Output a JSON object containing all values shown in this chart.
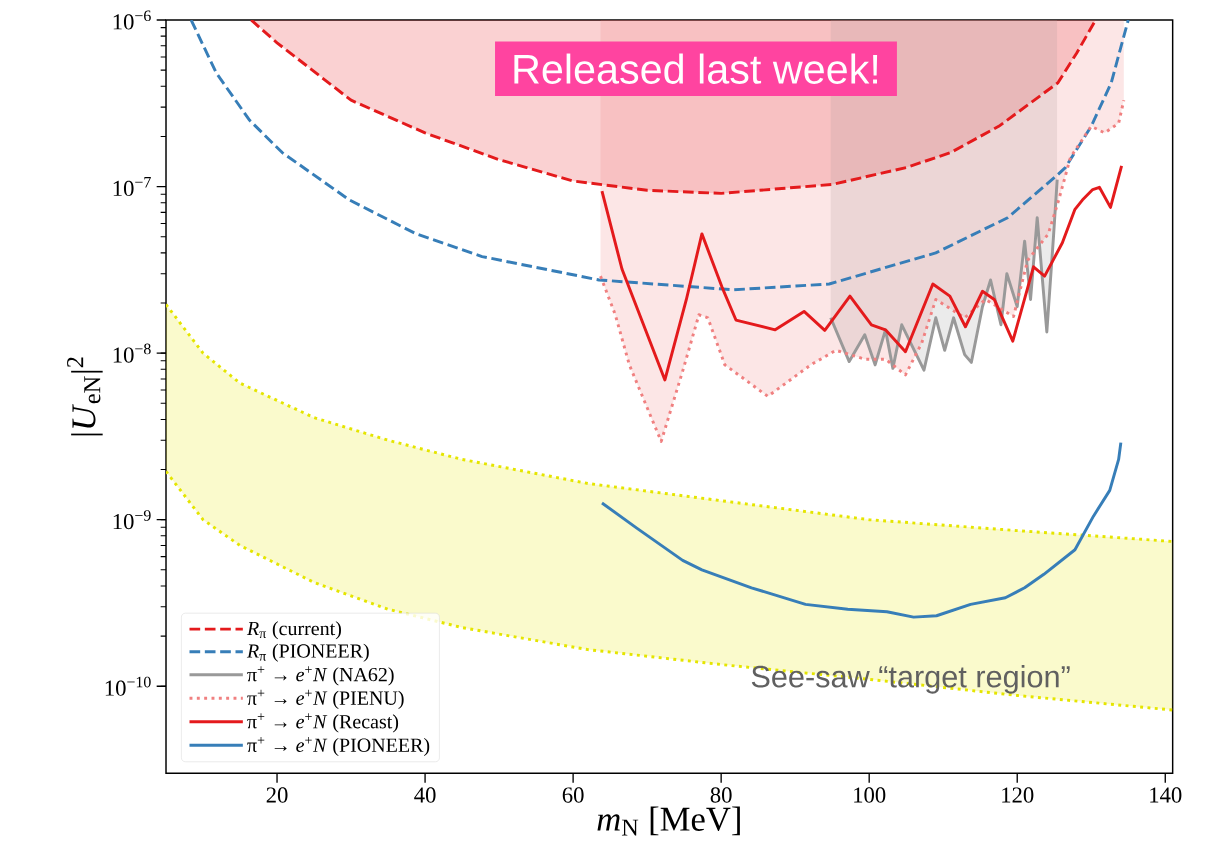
{
  "chart_data": {
    "type": "line",
    "xlabel": "*m*$_{N}$ [MeV]",
    "ylabel": "|*U*$_{eN}$|$^{2}$",
    "xlim": [
      5,
      141
    ],
    "ylim": [
      3e-11,
      1e-06
    ],
    "xticks": [
      20,
      40,
      60,
      80,
      100,
      120,
      140
    ],
    "yticks": [
      {
        "value": 1e-10,
        "label": "10$^{−10}$"
      },
      {
        "value": 1e-09,
        "label": "10$^{−9}$"
      },
      {
        "value": 1e-08,
        "label": "10$^{−8}$"
      },
      {
        "value": 1e-07,
        "label": "10$^{−7}$"
      },
      {
        "value": 1e-06,
        "label": "10$^{−6}$"
      }
    ],
    "log": "y",
    "legend": "bottom left",
    "annotations": [
      "Released last week!",
      "See-saw “target region”"
    ],
    "series": [
      {
        "color": "#e5e500",
        "line_style": "dotted",
        "x": [
          5,
          10,
          15,
          25,
          35,
          45,
          62,
          80,
          100,
          120,
          141
        ],
        "values": [
          1.96e-08,
          1e-08,
          6.6e-09,
          4.1e-09,
          3e-09,
          2.3e-09,
          1.65e-09,
          1.3e-09,
          1e-09,
          8.6e-10,
          7.4e-10
        ],
        "lower": [
          1.95e-09,
          1e-09,
          7e-10,
          4.2e-10,
          2.9e-10,
          2.25e-10,
          1.66e-10,
          1.35e-10,
          1.1e-10,
          8.8e-11,
          7.2e-11
        ],
        "upper": [
          1.96e-08,
          1e-08,
          6.6e-09,
          4.1e-09,
          3e-09,
          2.3e-09,
          1.65e-09,
          1.3e-09,
          1e-09,
          8.6e-10,
          7.4e-10
        ]
      },
      {
        "color": "#e5e500",
        "line_style": "dotted",
        "x": [
          5,
          10,
          15,
          25,
          35,
          45,
          62,
          80,
          100,
          120,
          141
        ],
        "values": [
          1.95e-09,
          1e-09,
          7e-10,
          4.2e-10,
          2.9e-10,
          2.25e-10,
          1.66e-10,
          1.35e-10,
          1.1e-10,
          8.8e-11,
          7.2e-11
        ]
      },
      {
        "name": "*R*$_{π}$ (current)",
        "color": "#e41a1c",
        "line_style": "dashed",
        "x": [
          16.5,
          20,
          30,
          40,
          50,
          60,
          70,
          80,
          95,
          105,
          111,
          117.5,
          125.5,
          128,
          130.6
        ],
        "values": [
          1e-06,
          7.3e-07,
          3.3e-07,
          2.1e-07,
          1.45e-07,
          1.08e-07,
          9.5e-08,
          9.1e-08,
          1.03e-07,
          1.3e-07,
          1.6e-07,
          2.3e-07,
          4.2e-07,
          6.3e-07,
          1e-06
        ],
        "lower": [
          1e-06,
          7.3e-07,
          3.3e-07,
          2.1e-07,
          1.45e-07,
          1.08e-07,
          9.5e-08,
          9.1e-08,
          1.03e-07,
          1.3e-07,
          1.6e-07,
          2.3e-07,
          4.2e-07,
          6.3e-07,
          1e-06
        ],
        "upper": [
          1e-06,
          1e-06,
          1e-06,
          1e-06,
          1e-06,
          1e-06,
          1e-06,
          1e-06,
          1e-06,
          1e-06,
          1e-06,
          1e-06,
          1e-06,
          1e-06,
          1e-06
        ]
      },
      {
        "name": "*R*$_{π}$ (PIONEER)",
        "color": "#377eb8",
        "line_style": "dashed",
        "x": [
          8.4,
          11.8,
          16.3,
          20.7,
          29.8,
          38.8,
          47.7,
          63.5,
          81.6,
          94.6,
          109,
          118.7,
          125.4,
          126.5,
          130,
          132.7,
          135
        ],
        "values": [
          1e-06,
          4.8e-07,
          2.5e-07,
          1.6e-07,
          8.3e-08,
          5.2e-08,
          3.8e-08,
          2.75e-08,
          2.4e-08,
          2.6e-08,
          4e-08,
          6.5e-08,
          1.17e-07,
          1.3e-07,
          2.3e-07,
          4.2e-07,
          1e-06
        ]
      },
      {
        "name": "π$^{+}$ → *e*$^{+}$*N* (NA62)",
        "color": "#999999",
        "line_style": "solid",
        "x": [
          94.8,
          97.3,
          99.4,
          100.8,
          102.2,
          103.2,
          104.4,
          107.4,
          109,
          110.2,
          111.4,
          112.9,
          113.8,
          115.3,
          116.4,
          117.8,
          118.6,
          120,
          121,
          121.8,
          122.7,
          124,
          124.9,
          125.4
        ],
        "values": [
          1.63e-08,
          8.9e-09,
          1.29e-08,
          8.5e-09,
          1.38e-08,
          8.1e-09,
          1.48e-08,
          7.9e-09,
          1.63e-08,
          1.04e-08,
          1.63e-08,
          9.8e-09,
          8.8e-09,
          1.9e-08,
          2.75e-08,
          1.48e-08,
          3e-08,
          1.9e-08,
          4.7e-08,
          2.1e-08,
          6.5e-08,
          1.34e-08,
          5e-08,
          1.1e-07
        ],
        "lower": [
          1.63e-08,
          8.9e-09,
          1.29e-08,
          8.5e-09,
          1.38e-08,
          8.1e-09,
          1.48e-08,
          7.9e-09,
          1.63e-08,
          1.04e-08,
          1.63e-08,
          9.8e-09,
          8.8e-09,
          1.9e-08,
          2.75e-08,
          1.48e-08,
          3e-08,
          1.9e-08,
          4.7e-08,
          2.1e-08,
          6.5e-08,
          1.34e-08,
          5e-08,
          1.1e-07
        ],
        "upper": [
          1e-06,
          1e-06,
          1e-06,
          1e-06,
          1e-06,
          1e-06,
          1e-06,
          1e-06,
          1e-06,
          1e-06,
          1e-06,
          1e-06,
          1e-06,
          1e-06,
          1e-06,
          1e-06,
          1e-06,
          1e-06,
          1e-06,
          1e-06,
          1e-06,
          1e-06,
          1e-06,
          1e-06
        ]
      },
      {
        "name": "π$^{+}$ → *e*$^{+}$*N* (PIENU)",
        "color": "#f08080",
        "line_style": "dotted",
        "x": [
          63.7,
          65.7,
          67.6,
          71.9,
          74.8,
          77,
          78.2,
          80.5,
          83.5,
          86.3,
          92.1,
          95.5,
          99.4,
          102.2,
          104.9,
          107.1,
          109,
          112.9,
          115.7,
          119.5,
          121.4,
          124.2,
          125.6,
          127.2,
          130,
          131.8,
          133.7,
          134.4
        ],
        "values": [
          2.9e-08,
          1.7e-08,
          8.5e-09,
          2.95e-09,
          7.8e-09,
          1.7e-08,
          1.63e-08,
          8.5e-09,
          6.8e-09,
          5.5e-09,
          8.5e-09,
          1.04e-08,
          9.2e-09,
          9.2e-09,
          7.4e-09,
          1.15e-08,
          2.1e-08,
          1.63e-08,
          2.1e-08,
          1.66e-08,
          3.6e-08,
          5.2e-08,
          8.3e-08,
          1.5e-07,
          2.3e-07,
          2.1e-07,
          2.4e-07,
          3.3e-07
        ],
        "lower": [
          2.9e-08,
          1.7e-08,
          8.5e-09,
          2.95e-09,
          7.8e-09,
          1.7e-08,
          1.63e-08,
          8.5e-09,
          6.8e-09,
          5.5e-09,
          8.5e-09,
          1.04e-08,
          9.2e-09,
          9.2e-09,
          7.4e-09,
          1.15e-08,
          2.1e-08,
          1.63e-08,
          2.1e-08,
          1.66e-08,
          3.6e-08,
          5.2e-08,
          8.3e-08,
          1.5e-07,
          2.3e-07,
          2.1e-07,
          2.4e-07,
          3.3e-07
        ],
        "upper": [
          1e-06,
          1e-06,
          1e-06,
          1e-06,
          1e-06,
          1e-06,
          1e-06,
          1e-06,
          1e-06,
          1e-06,
          1e-06,
          1e-06,
          1e-06,
          1e-06,
          1e-06,
          1e-06,
          1e-06,
          1e-06,
          1e-06,
          1e-06,
          1e-06,
          1e-06,
          1e-06,
          1e-06,
          1e-06,
          1e-06,
          1e-06,
          1e-06
        ]
      },
      {
        "name": "π$^{+}$ → *e*$^{+}$*N* (Recast)",
        "color": "#e41a1c",
        "line_style": "solid",
        "x": [
          63.9,
          66.6,
          72.4,
          75.3,
          77.4,
          80.1,
          82,
          87.3,
          91.2,
          94,
          97.4,
          100.3,
          102.2,
          104.9,
          108.6,
          110.9,
          113,
          115.3,
          116.9,
          119.4,
          122.2,
          123.7,
          126.1,
          127.8,
          128.8,
          130.2,
          131.1,
          132.6,
          134.1
        ],
        "values": [
          9.4e-08,
          3.2e-08,
          6.9e-09,
          2.1e-08,
          5.2e-08,
          2.5e-08,
          1.58e-08,
          1.38e-08,
          1.78e-08,
          1.37e-08,
          2.2e-08,
          1.48e-08,
          1.38e-08,
          1.02e-08,
          2.6e-08,
          2.2e-08,
          1.44e-08,
          2.35e-08,
          2.1e-08,
          1.18e-08,
          3.3e-08,
          2.9e-08,
          4.6e-08,
          7.3e-08,
          8.3e-08,
          9.6e-08,
          9.9e-08,
          7.5e-08,
          1.33e-07
        ]
      },
      {
        "name": "π$^{+}$ → *e*$^{+}$*N* (PIONEER)",
        "color": "#377eb8",
        "line_style": "solid",
        "x": [
          63.9,
          68.6,
          74.8,
          77.4,
          84.1,
          91.4,
          97.1,
          102.4,
          106,
          109.1,
          113.7,
          118.4,
          121,
          123.6,
          127.8,
          130.3,
          132.5,
          133.7,
          134
        ],
        "values": [
          1.26e-09,
          8.9e-10,
          5.7e-10,
          5e-10,
          3.9e-10,
          3.1e-10,
          2.9e-10,
          2.8e-10,
          2.6e-10,
          2.65e-10,
          3.1e-10,
          3.4e-10,
          3.9e-10,
          4.7e-10,
          6.6e-10,
          1.05e-09,
          1.5e-09,
          2.3e-09,
          2.9e-09
        ]
      }
    ]
  }
}
